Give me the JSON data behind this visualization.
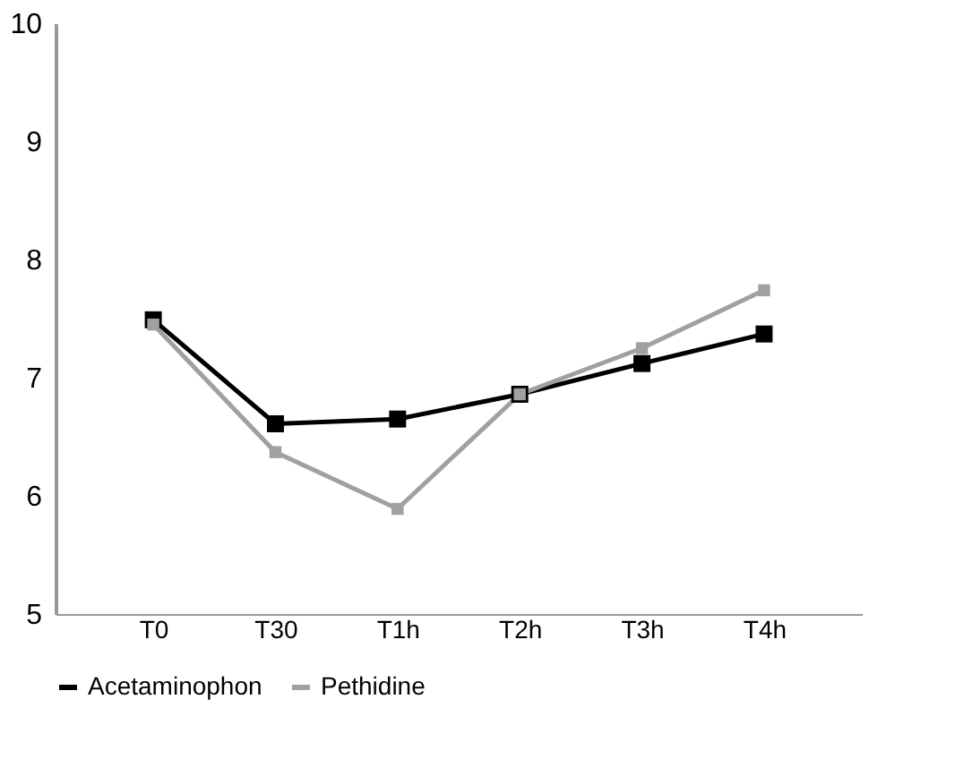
{
  "chart_data": {
    "type": "line",
    "categories": [
      "T0",
      "T30",
      "T1h",
      "T2h",
      "T3h",
      "T4h"
    ],
    "series": [
      {
        "name": "Acetaminophon",
        "color": "#000000",
        "values": [
          7.49,
          6.61,
          6.65,
          6.86,
          7.12,
          7.37
        ]
      },
      {
        "name": "Pethidine",
        "color": "#a0a0a0",
        "values": [
          7.45,
          6.37,
          5.89,
          6.86,
          7.25,
          7.74
        ]
      }
    ],
    "ylim": [
      5,
      10
    ],
    "yticks": [
      5,
      6,
      7,
      8,
      9,
      10
    ],
    "grid": false,
    "legend": "bottom",
    "marker": "square",
    "line_style": "solid"
  }
}
